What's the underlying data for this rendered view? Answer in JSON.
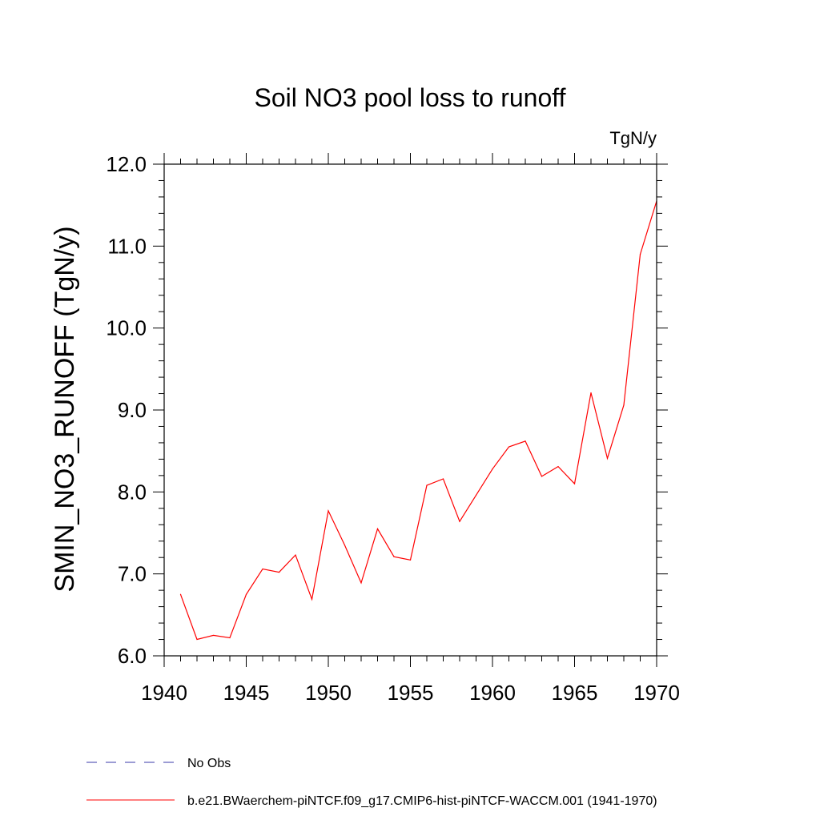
{
  "chart_data": {
    "type": "line",
    "title": "Soil NO3 pool loss to runoff",
    "units_label": "TgN/y",
    "ylabel": "SMIN_NO3_RUNOFF  (TgN/y)",
    "xlabel": "",
    "xlim": [
      1940,
      1970
    ],
    "ylim": [
      6.0,
      12.0
    ],
    "x_ticks": [
      "1940",
      "1945",
      "1950",
      "1955",
      "1960",
      "1965",
      "1970"
    ],
    "y_ticks": [
      "6.0",
      "7.0",
      "8.0",
      "9.0",
      "10.0",
      "11.0",
      "12.0"
    ],
    "grid": false,
    "legend_placement": "bottom",
    "series": [
      {
        "name": "b.e21.BWaerchem-piNTCF.f09_g17.CMIP6-hist-piNTCF-WACCM.001 (1941-1970)",
        "color": "#ff0000",
        "style": "solid",
        "x": [
          1941,
          1942,
          1943,
          1944,
          1945,
          1946,
          1947,
          1948,
          1949,
          1950,
          1951,
          1952,
          1953,
          1954,
          1955,
          1956,
          1957,
          1958,
          1959,
          1960,
          1961,
          1962,
          1963,
          1964,
          1965,
          1966,
          1967,
          1968,
          1969,
          1970
        ],
        "y": [
          6.75,
          6.2,
          6.25,
          6.22,
          6.75,
          7.06,
          7.02,
          7.23,
          6.69,
          7.77,
          7.35,
          6.89,
          7.55,
          7.21,
          7.17,
          8.08,
          8.16,
          7.64,
          7.96,
          8.28,
          8.55,
          8.62,
          8.19,
          8.31,
          8.1,
          9.21,
          8.41,
          9.06,
          10.9,
          11.55
        ]
      }
    ],
    "legend": [
      {
        "label": "No Obs",
        "color": "#3a3aa8",
        "style": "dashed"
      },
      {
        "label": "b.e21.BWaerchem-piNTCF.f09_g17.CMIP6-hist-piNTCF-WACCM.001 (1941-1970)",
        "color": "#ff0000",
        "style": "solid"
      }
    ]
  }
}
